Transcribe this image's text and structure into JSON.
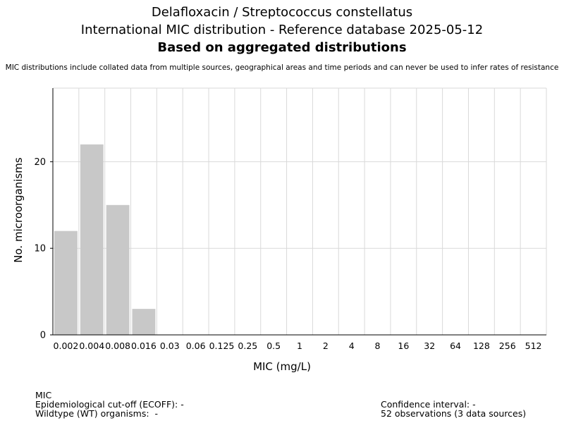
{
  "chart_data": {
    "type": "bar",
    "title_lines": [
      "Delafloxacin / Streptococcus constellatus",
      "International MIC distribution - Reference database 2025-05-12",
      "Based on aggregated distributions"
    ],
    "subtitle": "MIC distributions include collated data from multiple sources, geographical areas and time periods and can never be used to infer rates of resistance",
    "xlabel": "MIC (mg/L)",
    "ylabel": "No. microorganisms",
    "categories": [
      "0.002",
      "0.004",
      "0.008",
      "0.016",
      "0.03",
      "0.06",
      "0.125",
      "0.25",
      "0.5",
      "1",
      "2",
      "4",
      "8",
      "16",
      "32",
      "64",
      "128",
      "256",
      "512"
    ],
    "values": [
      12,
      22,
      15,
      3,
      0,
      0,
      0,
      0,
      0,
      0,
      0,
      0,
      0,
      0,
      0,
      0,
      0,
      0,
      0
    ],
    "ylim": [
      0,
      28.5
    ],
    "yticks": [
      0,
      10,
      20
    ],
    "grid": true,
    "bar_color": "#c8c8c8",
    "grid_color": "#d9d9d9"
  },
  "footer": {
    "mic_label": "MIC",
    "ecoff": "Epidemiological cut-off (ECOFF): -",
    "wildtype": "Wildtype (WT) organisms:  -",
    "confidence": "Confidence interval: -",
    "observations": "52 observations (3 data sources)"
  }
}
